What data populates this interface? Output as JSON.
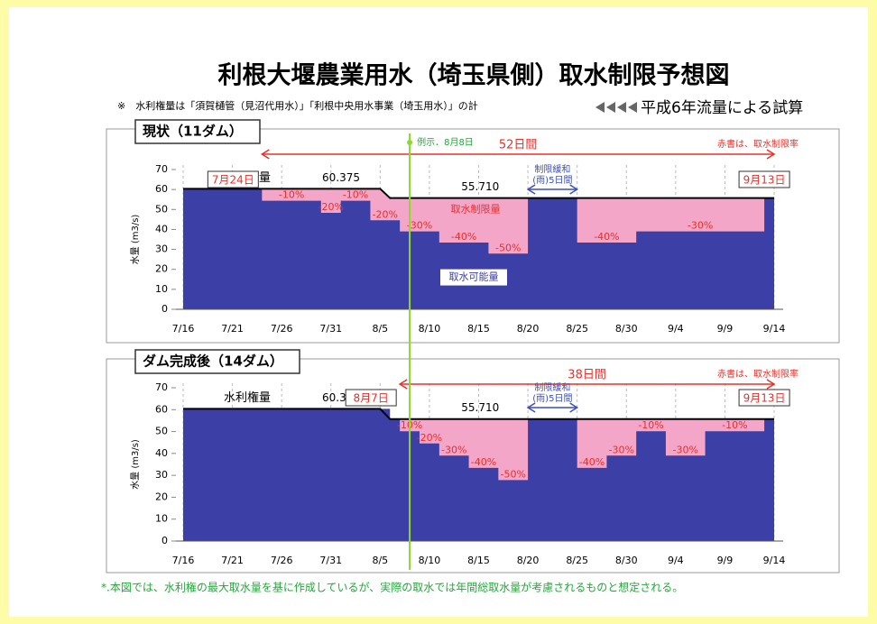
{
  "title": "利根大堰農業用水（埼玉県側）取水制限予想図",
  "note": "※　水利権量は「須賀樋管（見沼代用水）」「利根中央用水事業（埼玉用水）」の計",
  "subtitle": "平成6年流量による試算",
  "example_line": {
    "label": "例示．8月8日",
    "x": "8/8"
  },
  "footer": "*.本図では、水利権の最大取水量を基に作成しているが、実際の取水では年間総取水量が考慮されるものと想定される。",
  "chart_data": [
    {
      "type": "step-area",
      "title": "現状（11ダム）",
      "ylabel": "水量 (m3/s)",
      "red_note": "赤書は、取水制限率",
      "pink_label": "取水制限量",
      "blue_label": "取水可能量",
      "xlim": [
        "7/16",
        "9/14"
      ],
      "xticks": [
        "7/16",
        "7/21",
        "7/26",
        "7/31",
        "8/5",
        "8/10",
        "8/15",
        "8/20",
        "8/25",
        "8/30",
        "9/4",
        "9/9",
        "9/14"
      ],
      "ylim": [
        0,
        70
      ],
      "yticks": [
        0,
        10,
        20,
        30,
        40,
        50,
        60,
        70
      ],
      "grid": true,
      "series": [
        {
          "name": "水利権量",
          "color": "#000000",
          "x": [
            "7/16",
            "8/5",
            "8/6",
            "9/14"
          ],
          "values": [
            60.375,
            60.375,
            55.71,
            55.71
          ],
          "value_labels": [
            "60.375",
            null,
            "55.710",
            null
          ]
        },
        {
          "name": "取水可能量",
          "color": "#3b3fa6",
          "restricted_color": "#f4a6c8",
          "x": [
            "7/16",
            "7/24",
            "7/30",
            "8/1",
            "8/4",
            "8/7",
            "8/11",
            "8/16",
            "8/20",
            "8/25",
            "8/31",
            "9/13",
            "9/14"
          ],
          "values": [
            60.375,
            54.34,
            48.3,
            54.34,
            44.57,
            39.0,
            33.43,
            27.86,
            55.71,
            33.43,
            39.0,
            55.71,
            55.71
          ],
          "rate_labels": [
            null,
            "-10%",
            "-20%",
            "-10%",
            "-20%",
            "-30%",
            "-40%",
            "-50%",
            null,
            "-40%",
            "-30%",
            null,
            null
          ]
        }
      ],
      "periods": [
        {
          "label": [
            "52日間"
          ],
          "from": "7/24",
          "to": "9/14",
          "color": "#e8302a"
        },
        {
          "label": [
            "制限緩和",
            "(雨)5日間"
          ],
          "from": "8/20",
          "to": "8/25",
          "color": "#3a4fc0"
        }
      ],
      "date_boxes": [
        {
          "label": "7月24日",
          "x": "7/24"
        },
        {
          "label": "9月13日",
          "x": "9/13"
        }
      ]
    },
    {
      "type": "step-area",
      "title": "ダム完成後（14ダム）",
      "ylabel": "水量 (m3/s)",
      "red_note": "赤書は、取水制限率",
      "xlim": [
        "7/16",
        "9/14"
      ],
      "xticks": [
        "7/16",
        "7/21",
        "7/26",
        "7/31",
        "8/5",
        "8/10",
        "8/15",
        "8/20",
        "8/25",
        "8/30",
        "9/4",
        "9/9",
        "9/14"
      ],
      "ylim": [
        0,
        70
      ],
      "yticks": [
        0,
        10,
        20,
        30,
        40,
        50,
        60,
        70
      ],
      "grid": true,
      "series": [
        {
          "name": "水利権量",
          "color": "#000000",
          "x": [
            "7/16",
            "8/5",
            "8/6",
            "9/14"
          ],
          "values": [
            60.375,
            60.375,
            55.71,
            55.71
          ],
          "value_labels": [
            "60.375",
            null,
            "55.710",
            null
          ]
        },
        {
          "color": "#3b3fa6",
          "restricted_color": "#f4a6c8",
          "x": [
            "7/16",
            "8/6",
            "8/7",
            "8/9",
            "8/11",
            "8/14",
            "8/17",
            "8/20",
            "8/25",
            "8/28",
            "8/31",
            "9/3",
            "9/7",
            "9/13",
            "9/14"
          ],
          "values": [
            60.375,
            55.71,
            50.14,
            44.57,
            39.0,
            33.43,
            27.86,
            55.71,
            33.43,
            39.0,
            50.14,
            39.0,
            50.14,
            55.71,
            55.71
          ],
          "rate_labels": [
            null,
            null,
            "-10%",
            "-20%",
            "-30%",
            "-40%",
            "-50%",
            null,
            "-40%",
            "-30%",
            "-10%",
            "-30%",
            "-10%",
            null,
            null
          ]
        }
      ],
      "periods": [
        {
          "label": [
            "38日間"
          ],
          "from": "8/7",
          "to": "9/14",
          "color": "#e8302a"
        },
        {
          "label": [
            "制限緩和",
            "(雨)5日間"
          ],
          "from": "8/20",
          "to": "8/25",
          "color": "#3a4fc0"
        }
      ],
      "date_boxes": [
        {
          "label": "8月7日",
          "x": "8/7"
        },
        {
          "label": "9月13日",
          "x": "9/13"
        }
      ]
    }
  ]
}
